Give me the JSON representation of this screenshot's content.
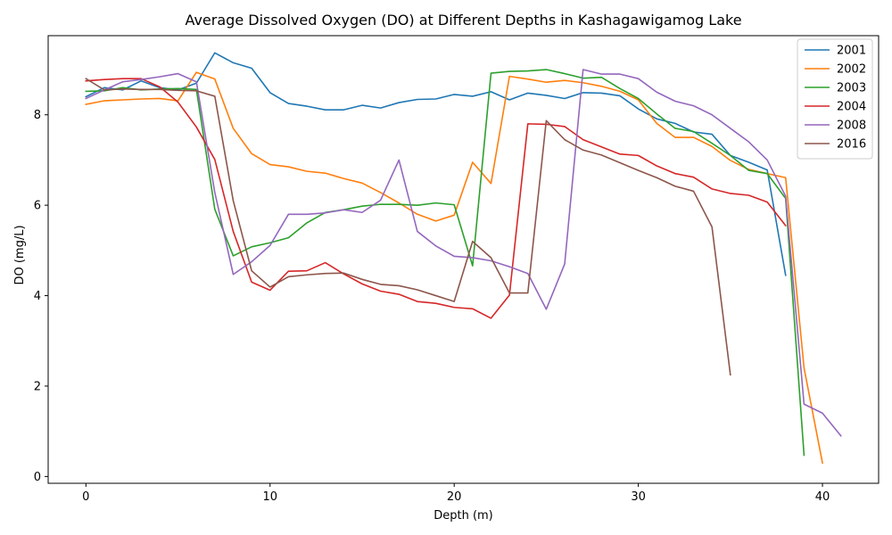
{
  "chart_data": {
    "type": "line",
    "title": "Average Dissolved Oxygen (DO) at Different Depths in Kashagawigamog Lake",
    "xlabel": "Depth (m)",
    "ylabel": "DO (mg/L)",
    "xlim": [
      -2.05,
      43.05
    ],
    "ylim": [
      -0.15,
      9.75
    ],
    "xticks": [
      0,
      10,
      20,
      30,
      40
    ],
    "yticks": [
      0,
      2,
      4,
      6,
      8
    ],
    "grid": false,
    "legend_position": "upper right",
    "series": [
      {
        "name": "2001",
        "color": "#1f77b4",
        "x": [
          0,
          1,
          2,
          3,
          4,
          5,
          6,
          7,
          8,
          9,
          10,
          11,
          12,
          13,
          14,
          15,
          16,
          17,
          18,
          19,
          20,
          21,
          22,
          23,
          24,
          25,
          26,
          27,
          28,
          29,
          30,
          31,
          32,
          33,
          34,
          35,
          36,
          37,
          38
        ],
        "y": [
          8.4,
          8.6,
          8.55,
          8.75,
          8.6,
          8.55,
          8.7,
          9.37,
          9.15,
          9.03,
          8.49,
          8.25,
          8.19,
          8.11,
          8.11,
          8.21,
          8.15,
          8.27,
          8.34,
          8.35,
          8.45,
          8.41,
          8.51,
          8.33,
          8.48,
          8.43,
          8.36,
          8.49,
          8.48,
          8.42,
          8.13,
          7.91,
          7.81,
          7.62,
          7.57,
          7.1,
          6.95,
          6.78,
          4.45
        ]
      },
      {
        "name": "2002",
        "color": "#ff7f0e",
        "x": [
          0,
          1,
          2,
          3,
          4,
          5,
          6,
          7,
          8,
          9,
          10,
          11,
          12,
          13,
          14,
          15,
          16,
          17,
          18,
          19,
          20,
          21,
          22,
          23,
          24,
          25,
          26,
          27,
          28,
          29,
          30,
          31,
          32,
          33,
          34,
          35,
          36,
          37,
          38,
          39,
          40
        ],
        "y": [
          8.23,
          8.31,
          8.33,
          8.35,
          8.36,
          8.31,
          8.94,
          8.79,
          7.7,
          7.14,
          6.9,
          6.85,
          6.75,
          6.71,
          6.59,
          6.49,
          6.28,
          6.05,
          5.8,
          5.65,
          5.78,
          6.95,
          6.48,
          8.85,
          8.79,
          8.72,
          8.76,
          8.71,
          8.63,
          8.52,
          8.33,
          7.81,
          7.5,
          7.5,
          7.3,
          6.99,
          6.79,
          6.7,
          6.61,
          2.4,
          0.3
        ]
      },
      {
        "name": "2003",
        "color": "#2ca02c",
        "x": [
          0,
          1,
          2,
          3,
          4,
          5,
          6,
          7,
          8,
          9,
          10,
          11,
          12,
          13,
          14,
          15,
          16,
          17,
          18,
          19,
          20,
          21,
          22,
          23,
          24,
          25,
          26,
          27,
          28,
          29,
          30,
          31,
          32,
          33,
          34,
          35,
          36,
          37,
          38,
          39
        ],
        "y": [
          8.52,
          8.53,
          8.6,
          8.55,
          8.57,
          8.58,
          8.56,
          5.91,
          4.88,
          5.08,
          5.17,
          5.28,
          5.61,
          5.84,
          5.9,
          5.98,
          6.02,
          6.02,
          6.0,
          6.05,
          6.01,
          4.66,
          8.92,
          8.96,
          8.97,
          9.0,
          8.91,
          8.81,
          8.83,
          8.58,
          8.36,
          8.02,
          7.7,
          7.63,
          7.37,
          7.1,
          6.77,
          6.7,
          6.15,
          0.47
        ]
      },
      {
        "name": "2004",
        "color": "#d62728",
        "x": [
          0,
          1,
          2,
          3,
          4,
          5,
          6,
          7,
          8,
          9,
          10,
          11,
          12,
          13,
          14,
          15,
          16,
          17,
          18,
          19,
          20,
          21,
          22,
          23,
          24,
          25,
          26,
          27,
          28,
          29,
          30,
          31,
          32,
          33,
          34,
          35,
          36,
          37,
          38
        ],
        "y": [
          8.75,
          8.78,
          8.8,
          8.8,
          8.62,
          8.28,
          7.73,
          7.01,
          5.42,
          4.3,
          4.12,
          4.54,
          4.55,
          4.73,
          4.48,
          4.26,
          4.1,
          4.03,
          3.87,
          3.83,
          3.74,
          3.71,
          3.5,
          4.01,
          7.8,
          7.79,
          7.74,
          7.45,
          7.29,
          7.13,
          7.1,
          6.87,
          6.7,
          6.62,
          6.36,
          6.26,
          6.22,
          6.07,
          5.55
        ]
      },
      {
        "name": "2008",
        "color": "#9467bd",
        "x": [
          0,
          1,
          2,
          3,
          4,
          5,
          6,
          7,
          8,
          9,
          10,
          11,
          12,
          13,
          14,
          15,
          16,
          17,
          18,
          19,
          20,
          21,
          22,
          23,
          24,
          25,
          26,
          27,
          28,
          29,
          30,
          31,
          32,
          33,
          34,
          35,
          36,
          37,
          38,
          39,
          40,
          41
        ],
        "y": [
          8.36,
          8.55,
          8.73,
          8.78,
          8.84,
          8.91,
          8.73,
          6.28,
          4.47,
          4.75,
          5.11,
          5.8,
          5.8,
          5.83,
          5.9,
          5.84,
          6.11,
          7.0,
          5.42,
          5.1,
          4.87,
          4.84,
          4.77,
          4.64,
          4.49,
          3.7,
          4.7,
          9.0,
          8.9,
          8.9,
          8.8,
          8.5,
          8.3,
          8.2,
          8.0,
          7.7,
          7.4,
          7.0,
          6.2,
          1.6,
          1.4,
          0.9
        ]
      },
      {
        "name": "2016",
        "color": "#8c564b",
        "x": [
          0,
          1,
          2,
          3,
          4,
          5,
          6,
          7,
          8,
          9,
          10,
          11,
          12,
          13,
          14,
          15,
          16,
          17,
          18,
          19,
          20,
          21,
          22,
          23,
          24,
          25,
          26,
          27,
          28,
          29,
          30,
          31,
          32,
          33,
          34,
          35
        ],
        "y": [
          8.8,
          8.55,
          8.57,
          8.56,
          8.56,
          8.54,
          8.53,
          8.41,
          6.1,
          4.55,
          4.19,
          4.42,
          4.46,
          4.49,
          4.5,
          4.36,
          4.25,
          4.22,
          4.13,
          4.0,
          3.87,
          5.2,
          4.84,
          4.06,
          4.06,
          7.87,
          7.45,
          7.22,
          7.11,
          6.94,
          6.77,
          6.61,
          6.42,
          6.31,
          5.52,
          2.25
        ]
      }
    ]
  }
}
